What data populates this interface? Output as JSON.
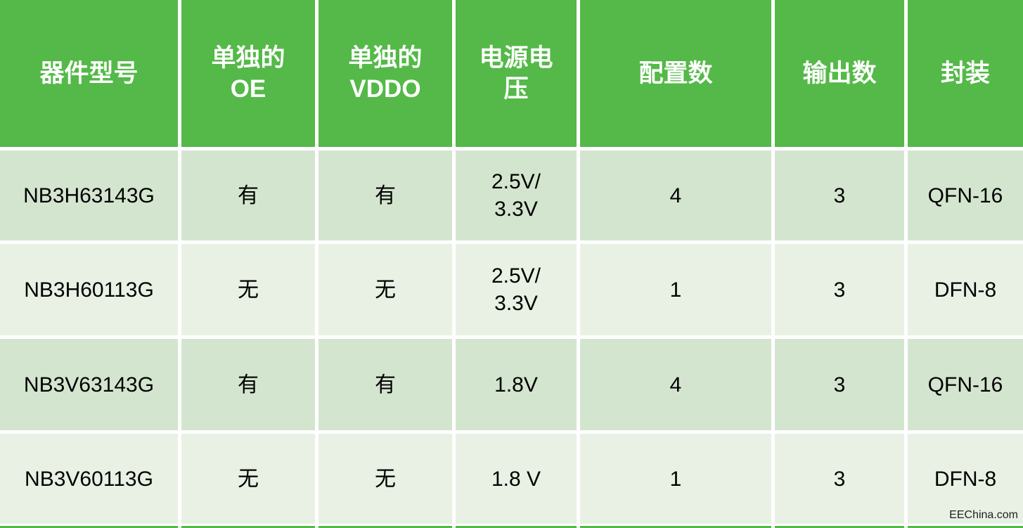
{
  "table": {
    "headers": {
      "part": "器件型号",
      "oe": "单独的\nOE",
      "vddo": "单独的\nVDDO",
      "voltage": "电源电\n压",
      "configs": "配置数",
      "outputs": "输出数",
      "package": "封装"
    },
    "rows": [
      {
        "part": "NB3H63143G",
        "oe": "有",
        "vddo": "有",
        "voltage": "2.5V/\n3.3V",
        "configs": "4",
        "outputs": "3",
        "package": "QFN-16"
      },
      {
        "part": "NB3H60113G",
        "oe": "无",
        "vddo": "无",
        "voltage": "2.5V/\n3.3V",
        "configs": "1",
        "outputs": "3",
        "package": "DFN-8"
      },
      {
        "part": "NB3V63143G",
        "oe": "有",
        "vddo": "有",
        "voltage": "1.8V",
        "configs": "4",
        "outputs": "3",
        "package": "QFN-16"
      },
      {
        "part": "NB3V60113G",
        "oe": "无",
        "vddo": "无",
        "voltage": "1.8 V",
        "configs": "1",
        "outputs": "3",
        "package": "DFN-8"
      }
    ]
  },
  "watermark": "EEChina.com",
  "colors": {
    "header_bg": "#54B948",
    "row_odd_bg": "#D4E5CF",
    "row_even_bg": "#E8F1E4",
    "gap": "#FFFFFF",
    "header_text": "#FFFFFF",
    "body_text": "#000000",
    "watermark_text": "#222222"
  }
}
